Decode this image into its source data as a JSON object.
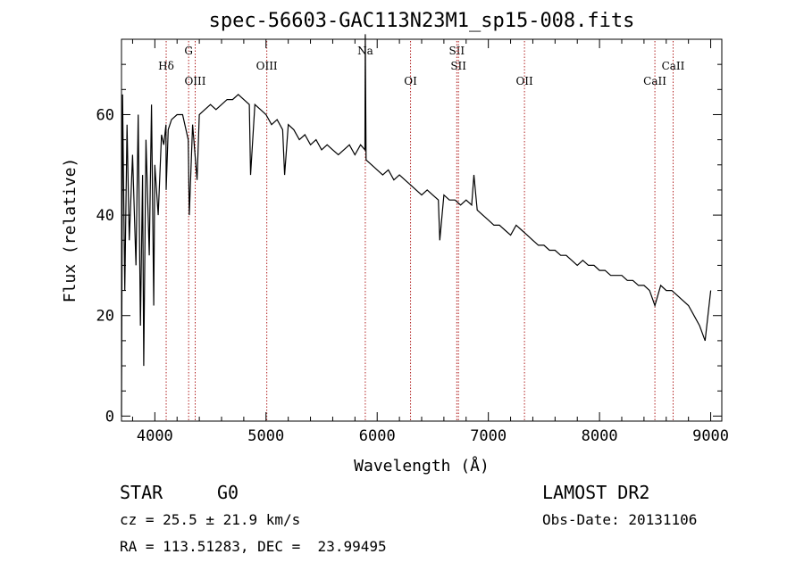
{
  "chart_data": {
    "type": "line",
    "title": "spec-56603-GAC113N23M1_sp15-008.fits",
    "xlabel": "Wavelength (Å)",
    "ylabel": "Flux (relative)",
    "xlim": [
      3700,
      9100
    ],
    "ylim": [
      -1,
      75
    ],
    "x_ticks": [
      4000,
      5000,
      6000,
      7000,
      8000,
      9000
    ],
    "y_ticks": [
      0,
      20,
      40,
      60
    ],
    "grid": false,
    "series": [
      {
        "x": [
          3700,
          3710,
          3730,
          3750,
          3770,
          3800,
          3830,
          3850,
          3870,
          3890,
          3900,
          3920,
          3950,
          3970,
          3990,
          4000,
          4030,
          4060,
          4080,
          4100,
          4102,
          4120,
          4150,
          4200,
          4250,
          4300,
          4310,
          4340,
          4380,
          4400,
          4450,
          4500,
          4550,
          4600,
          4650,
          4700,
          4750,
          4800,
          4850,
          4861,
          4900,
          4950,
          5000,
          5050,
          5100,
          5150,
          5167,
          5200,
          5250,
          5300,
          5350,
          5400,
          5450,
          5500,
          5550,
          5600,
          5650,
          5700,
          5750,
          5800,
          5850,
          5890,
          5893,
          5900,
          5950,
          6000,
          6050,
          6100,
          6150,
          6200,
          6250,
          6300,
          6350,
          6400,
          6450,
          6500,
          6550,
          6563,
          6600,
          6650,
          6700,
          6750,
          6800,
          6850,
          6870,
          6900,
          6950,
          7000,
          7050,
          7100,
          7150,
          7200,
          7250,
          7300,
          7350,
          7400,
          7450,
          7500,
          7550,
          7600,
          7650,
          7700,
          7750,
          7800,
          7850,
          7900,
          7950,
          8000,
          8050,
          8100,
          8150,
          8200,
          8250,
          8300,
          8350,
          8400,
          8450,
          8498,
          8550,
          8600,
          8650,
          8700,
          8750,
          8800,
          8850,
          8900,
          8950,
          9000
        ],
        "values": [
          0,
          64,
          25,
          58,
          35,
          52,
          30,
          60,
          18,
          48,
          10,
          55,
          32,
          62,
          22,
          50,
          40,
          56,
          54,
          58,
          45,
          57,
          59,
          60,
          60,
          55,
          40,
          58,
          47,
          60,
          61,
          62,
          61,
          62,
          63,
          63,
          64,
          63,
          62,
          48,
          62,
          61,
          60,
          58,
          59,
          57,
          48,
          58,
          57,
          55,
          56,
          54,
          55,
          53,
          54,
          53,
          52,
          53,
          54,
          52,
          54,
          53,
          76,
          51,
          50,
          49,
          48,
          49,
          47,
          48,
          47,
          46,
          45,
          44,
          45,
          44,
          43,
          35,
          44,
          43,
          43,
          42,
          43,
          42,
          48,
          41,
          40,
          39,
          38,
          38,
          37,
          36,
          38,
          37,
          36,
          35,
          34,
          34,
          33,
          33,
          32,
          32,
          31,
          30,
          31,
          30,
          30,
          29,
          29,
          28,
          28,
          28,
          27,
          27,
          26,
          26,
          25,
          22,
          26,
          25,
          25,
          24,
          23,
          22,
          20,
          18,
          15,
          25
        ]
      }
    ],
    "line_markers": [
      {
        "wavelength": 4102,
        "label": "Hδ",
        "row": 2
      },
      {
        "wavelength": 4304,
        "label": "G",
        "row": 1
      },
      {
        "wavelength": 4363,
        "label": "OIII",
        "row": 3
      },
      {
        "wavelength": 5007,
        "label": "OIII",
        "row": 2
      },
      {
        "wavelength": 5893,
        "label": "Na",
        "row": 1
      },
      {
        "wavelength": 6300,
        "label": "OI",
        "row": 3
      },
      {
        "wavelength": 6716,
        "label": "SII",
        "row": 1
      },
      {
        "wavelength": 6731,
        "label": "SII",
        "row": 2
      },
      {
        "wavelength": 7325,
        "label": "OII",
        "row": 3
      },
      {
        "wavelength": 8498,
        "label": "CaII",
        "row": 3
      },
      {
        "wavelength": 8662,
        "label": "CaII",
        "row": 2
      }
    ]
  },
  "info": {
    "class": "STAR",
    "subclass": "G0",
    "survey": "LAMOST DR2",
    "cz": "cz = 25.5 ± 21.9 km/s",
    "obs_date": "Obs-Date: 20131106",
    "radec": "RA = 113.51283, DEC =  23.99495"
  }
}
